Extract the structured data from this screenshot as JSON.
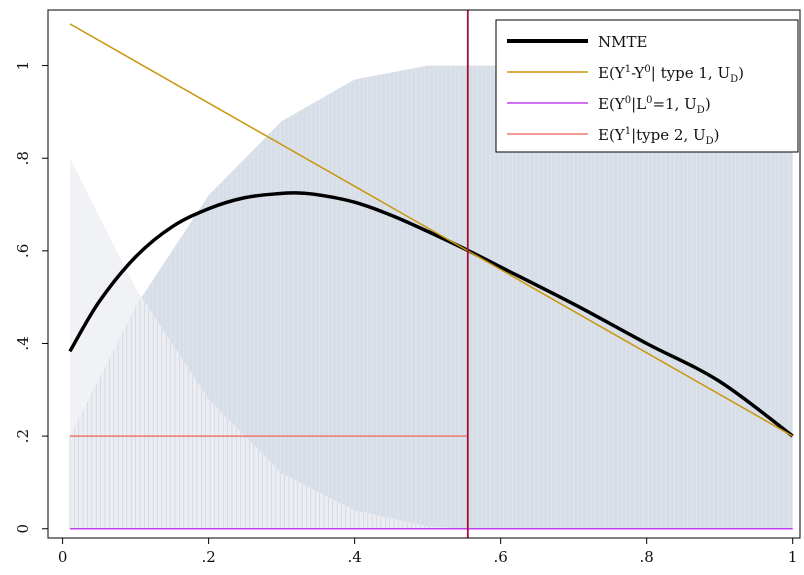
{
  "chart_data": {
    "type": "line",
    "title": "",
    "xlabel": "",
    "ylabel": "",
    "xlim": [
      -0.02,
      1.01
    ],
    "ylim": [
      -0.02,
      1.12
    ],
    "x_ticks": [
      0,
      0.2,
      0.4,
      0.6,
      0.8,
      1
    ],
    "x_tick_labels": [
      "0",
      ".2",
      ".4",
      ".6",
      ".8",
      "1"
    ],
    "y_ticks": [
      0,
      0.2,
      0.4,
      0.6,
      0.8,
      1
    ],
    "y_tick_labels": [
      "0",
      ".2",
      ".4",
      ".6",
      ".8",
      "1"
    ],
    "grid": false,
    "legend_position": "top-right",
    "vertical_line_x": 0.555,
    "series": [
      {
        "name": "NMTE",
        "color": "#000000",
        "x": [
          0.01,
          0.05,
          0.1,
          0.15,
          0.2,
          0.25,
          0.3,
          0.32,
          0.35,
          0.4,
          0.45,
          0.5,
          0.555,
          0.6,
          0.7,
          0.8,
          0.9,
          1.0
        ],
        "y": [
          0.383,
          0.49,
          0.587,
          0.652,
          0.691,
          0.715,
          0.724,
          0.725,
          0.721,
          0.705,
          0.677,
          0.642,
          0.601,
          0.565,
          0.485,
          0.4,
          0.318,
          0.2
        ]
      },
      {
        "name": "E(Y¹-Y⁰| type 1, U_D)",
        "color": "#c8960c",
        "x": [
          0.01,
          1.0
        ],
        "y": [
          1.09,
          0.2
        ]
      },
      {
        "name": "E(Y⁰|L⁰=1, U_D)",
        "color": "#c040f0",
        "x": [
          0.01,
          1.0
        ],
        "y": [
          0.0,
          0.0
        ]
      },
      {
        "name": "E(Y¹|type 2, U_D)",
        "color": "#f07870",
        "x": [
          0.01,
          0.555
        ],
        "y": [
          0.2,
          0.2
        ]
      }
    ],
    "shaded_areas": [
      {
        "name": "density-1",
        "color": "#c9d3df",
        "x": [
          0.01,
          0.1,
          0.2,
          0.3,
          0.4,
          0.5,
          0.555,
          1.0
        ],
        "y": [
          0.2,
          0.48,
          0.72,
          0.88,
          0.97,
          1.0,
          1.0,
          1.0
        ]
      },
      {
        "name": "density-2",
        "color": "#eef0f3",
        "x": [
          0.01,
          0.1,
          0.2,
          0.3,
          0.4,
          0.5,
          0.56
        ],
        "y": [
          0.8,
          0.52,
          0.28,
          0.12,
          0.04,
          0.005,
          0.0
        ]
      }
    ],
    "legend_items": [
      {
        "label": "NMTE",
        "color": "#000000"
      },
      {
        "label": "E(Y¹-Y⁰| type 1, U_D)",
        "color": "#c8960c"
      },
      {
        "label": "E(Y⁰|L⁰=1, U_D)",
        "color": "#c040f0"
      },
      {
        "label": "E(Y¹|type 2, U_D)",
        "color": "#f07870"
      }
    ]
  }
}
